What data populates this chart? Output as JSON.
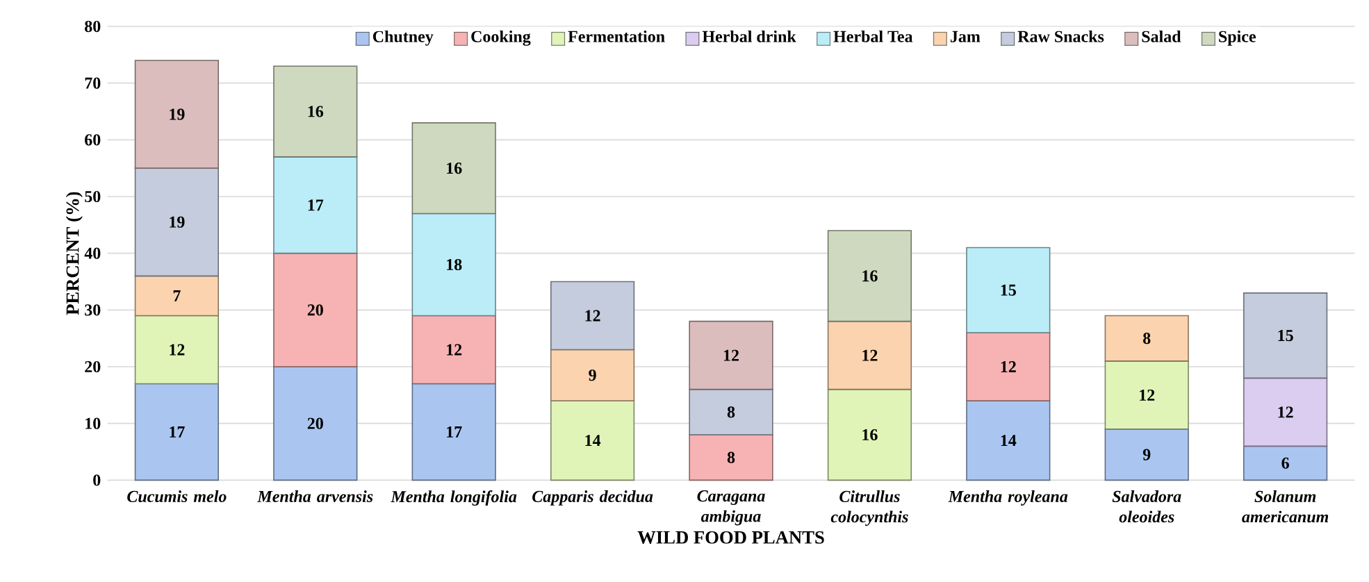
{
  "chart_data": {
    "type": "bar",
    "stacked": true,
    "xlabel": "WILD FOOD PLANTS",
    "ylabel": "PERCENT (%)",
    "categories": [
      "Cucumis melo",
      "Mentha arvensis",
      "Mentha longifolia",
      "Capparis decidua",
      "Caragana ambigua",
      "Citrullus colocynthis",
      "Mentha royleana",
      "Salvadora oleoides",
      "Solanum americanum"
    ],
    "series": [
      {
        "name": "Chutney",
        "color": "#aac6f0",
        "values": [
          17,
          20,
          17,
          null,
          null,
          null,
          14,
          9,
          6
        ]
      },
      {
        "name": "Cooking",
        "color": "#f7b3b3",
        "values": [
          null,
          20,
          12,
          null,
          8,
          null,
          12,
          null,
          null
        ]
      },
      {
        "name": "Fermentation",
        "color": "#e0f4b8",
        "values": [
          12,
          null,
          null,
          14,
          null,
          16,
          null,
          12,
          null
        ]
      },
      {
        "name": "Herbal drink",
        "color": "#dacdef",
        "values": [
          null,
          null,
          null,
          null,
          null,
          null,
          null,
          null,
          12
        ]
      },
      {
        "name": "Herbal Tea",
        "color": "#bbedf8",
        "values": [
          null,
          17,
          18,
          null,
          null,
          null,
          15,
          null,
          null
        ]
      },
      {
        "name": "Jam",
        "color": "#fbd3ae",
        "values": [
          7,
          null,
          null,
          9,
          null,
          12,
          null,
          8,
          null
        ]
      },
      {
        "name": "Raw Snacks",
        "color": "#c4ccdd",
        "values": [
          19,
          null,
          null,
          12,
          8,
          null,
          null,
          null,
          15
        ]
      },
      {
        "name": "Salad",
        "color": "#dcbdbe",
        "values": [
          19,
          null,
          null,
          null,
          12,
          null,
          null,
          null,
          null
        ]
      },
      {
        "name": "Spice",
        "color": "#cfd9bf",
        "values": [
          null,
          16,
          16,
          null,
          null,
          16,
          null,
          null,
          null
        ]
      }
    ],
    "ylim": [
      0,
      80
    ],
    "yticks": [
      0,
      10,
      20,
      30,
      40,
      50,
      60,
      70,
      80
    ],
    "grid": "y",
    "legend": "top",
    "data_labels": true
  }
}
